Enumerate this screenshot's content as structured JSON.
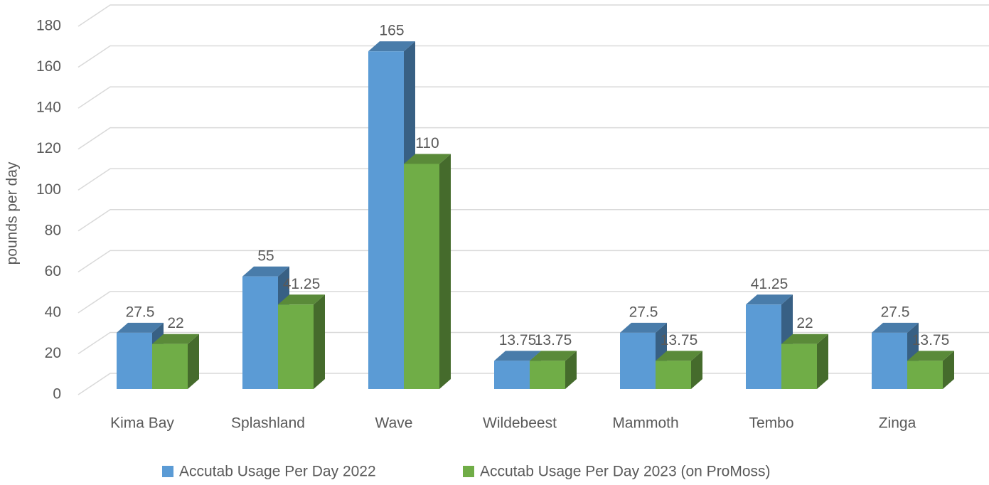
{
  "chart_data": {
    "type": "bar3d",
    "y_axis_label": "pounds per day",
    "categories": [
      "Kima Bay",
      "Splashland",
      "Wave",
      "Wildebeest",
      "Mammoth",
      "Tembo",
      "Zinga"
    ],
    "series": [
      {
        "name": "Accutab Usage Per Day 2022",
        "color": "#5b9bd5",
        "values": [
          27.5,
          55,
          165,
          13.75,
          27.5,
          41.25,
          27.5
        ]
      },
      {
        "name": "Accutab Usage Per Day 2023 (on ProMoss)",
        "color": "#70ad47",
        "values": [
          22,
          41.25,
          110,
          13.75,
          13.75,
          22,
          13.75
        ]
      }
    ],
    "ylim": [
      0,
      180
    ],
    "yticks": [
      0,
      20,
      40,
      60,
      80,
      100,
      120,
      140,
      160,
      180
    ],
    "grid": true,
    "legend": "bottom"
  }
}
